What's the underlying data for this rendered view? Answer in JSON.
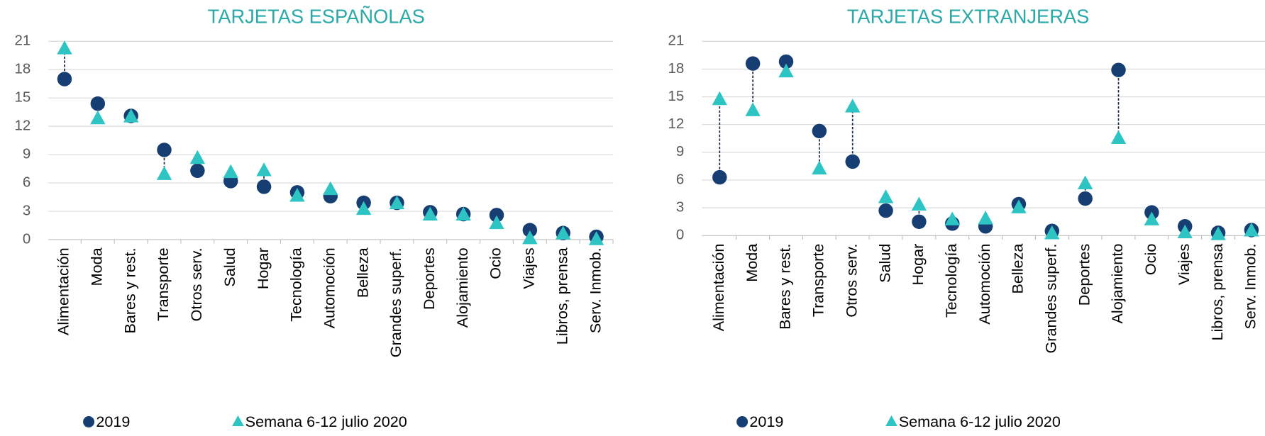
{
  "chart_data": [
    {
      "type": "dot",
      "title": "TARJETAS ESPAÑOLAS",
      "categories": [
        "Alimentación",
        "Moda",
        "Bares y rest.",
        "Transporte",
        "Otros serv.",
        "Salud",
        "Hogar",
        "Tecnología",
        "Automoción",
        "Belleza",
        "Grandes superf.",
        "Deportes",
        "Alojamiento",
        "Ocio",
        "Viajes",
        "Libros, prensa",
        "Serv. Inmob."
      ],
      "series": [
        {
          "name": "2019",
          "color": "#163e73",
          "marker": "circle",
          "values": [
            17.0,
            14.4,
            13.1,
            9.5,
            7.3,
            6.2,
            5.6,
            5.0,
            4.6,
            3.9,
            3.9,
            2.9,
            2.7,
            2.6,
            1.0,
            0.7,
            0.3
          ]
        },
        {
          "name": "Semana 6-12 julio 2020",
          "color": "#2ec4c4",
          "marker": "triangle",
          "values": [
            20.2,
            12.8,
            13.0,
            6.9,
            8.6,
            7.1,
            7.3,
            4.6,
            5.3,
            3.2,
            3.8,
            2.6,
            2.6,
            1.7,
            0.1,
            0.6,
            0.0
          ]
        }
      ],
      "ylim": [
        0,
        21
      ],
      "yticks": [
        0,
        3,
        6,
        9,
        12,
        15,
        18,
        21
      ],
      "grid": true
    },
    {
      "type": "dot",
      "title": "TARJETAS EXTRANJERAS",
      "categories": [
        "Alimentación",
        "Moda",
        "Bares y rest.",
        "Transporte",
        "Otros serv.",
        "Salud",
        "Hogar",
        "Tecnología",
        "Automoción",
        "Belleza",
        "Grandes superf.",
        "Deportes",
        "Alojamiento",
        "Ocio",
        "Viajes",
        "Libros, prensa",
        "Serv. Inmob."
      ],
      "series": [
        {
          "name": "2019",
          "color": "#163e73",
          "marker": "circle",
          "values": [
            6.3,
            18.6,
            18.8,
            11.3,
            8.0,
            2.7,
            1.5,
            1.3,
            1.0,
            3.4,
            0.5,
            4.0,
            17.9,
            2.5,
            1.0,
            0.3,
            0.6
          ]
        },
        {
          "name": "Semana 6-12 julio 2020",
          "color": "#2ec4c4",
          "marker": "triangle",
          "values": [
            14.7,
            13.5,
            17.7,
            7.2,
            13.9,
            4.1,
            3.3,
            1.7,
            1.8,
            3.0,
            0.2,
            5.6,
            10.5,
            1.7,
            0.3,
            0.1,
            0.5
          ]
        }
      ],
      "ylim": [
        0,
        21
      ],
      "yticks": [
        0,
        3,
        6,
        9,
        12,
        15,
        18,
        21
      ],
      "grid": true
    }
  ]
}
